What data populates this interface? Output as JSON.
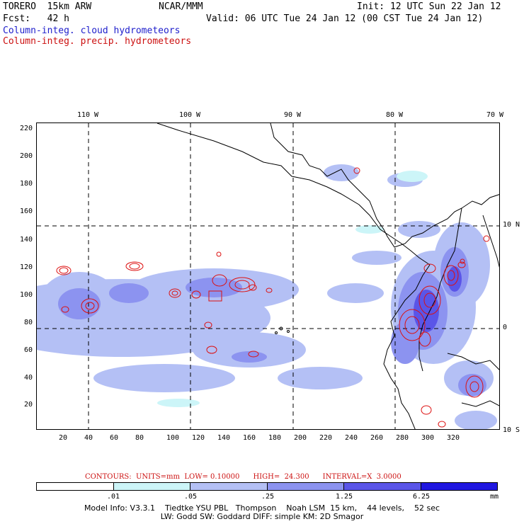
{
  "header": {
    "model_name": "TORERO  15km ARW",
    "org": "NCAR/MMM",
    "init": "Init: 12 UTC Sun 22 Jan 12",
    "fcst": "Fcst:   42 h",
    "valid": "Valid: 06 UTC Tue 24 Jan 12 (00 CST Tue 24 Jan 12)"
  },
  "legend": {
    "cloud": "Column-integ. cloud hydrometeors",
    "precip": "Column-integ. precip. hydrometeors",
    "cloud_color": "#2020cc",
    "precip_color": "#cc1010"
  },
  "map": {
    "top_lon_labels": [
      "110 W",
      "100 W",
      "90 W",
      "80 W",
      "70 W"
    ],
    "right_lat_labels": [
      "10 N",
      "0",
      "10 S"
    ],
    "left_y_ticks": [
      "220",
      "200",
      "180",
      "160",
      "140",
      "120",
      "100",
      "80",
      "60",
      "40",
      "20"
    ],
    "bottom_x_ticks": [
      "20",
      "40",
      "60",
      "80",
      "100",
      "120",
      "140",
      "160",
      "180",
      "200",
      "220",
      "240",
      "260",
      "280",
      "300",
      "320"
    ]
  },
  "contours": {
    "text": "CONTOURS:  UNITS=mm  LOW= 0.10000      HIGH=  24.300      INTERVAL=X  3.0000"
  },
  "colorbar": {
    "colors": [
      "#ffffff",
      "#ccf5f8",
      "#b4c0f5",
      "#8c93f0",
      "#5a55e8",
      "#1f16e0"
    ],
    "labels": [
      ".01",
      ".05",
      ".25",
      "1.25",
      "6.25"
    ],
    "unit": "mm"
  },
  "footer": {
    "line1": "Model Info: V3.3.1    Tiedtke YSU PBL   Thompson    Noah LSM  15 km,    44 levels,    52 sec",
    "line2": "LW: Godd SW: Goddard DIFF: simple KM: 2D Smagor"
  }
}
